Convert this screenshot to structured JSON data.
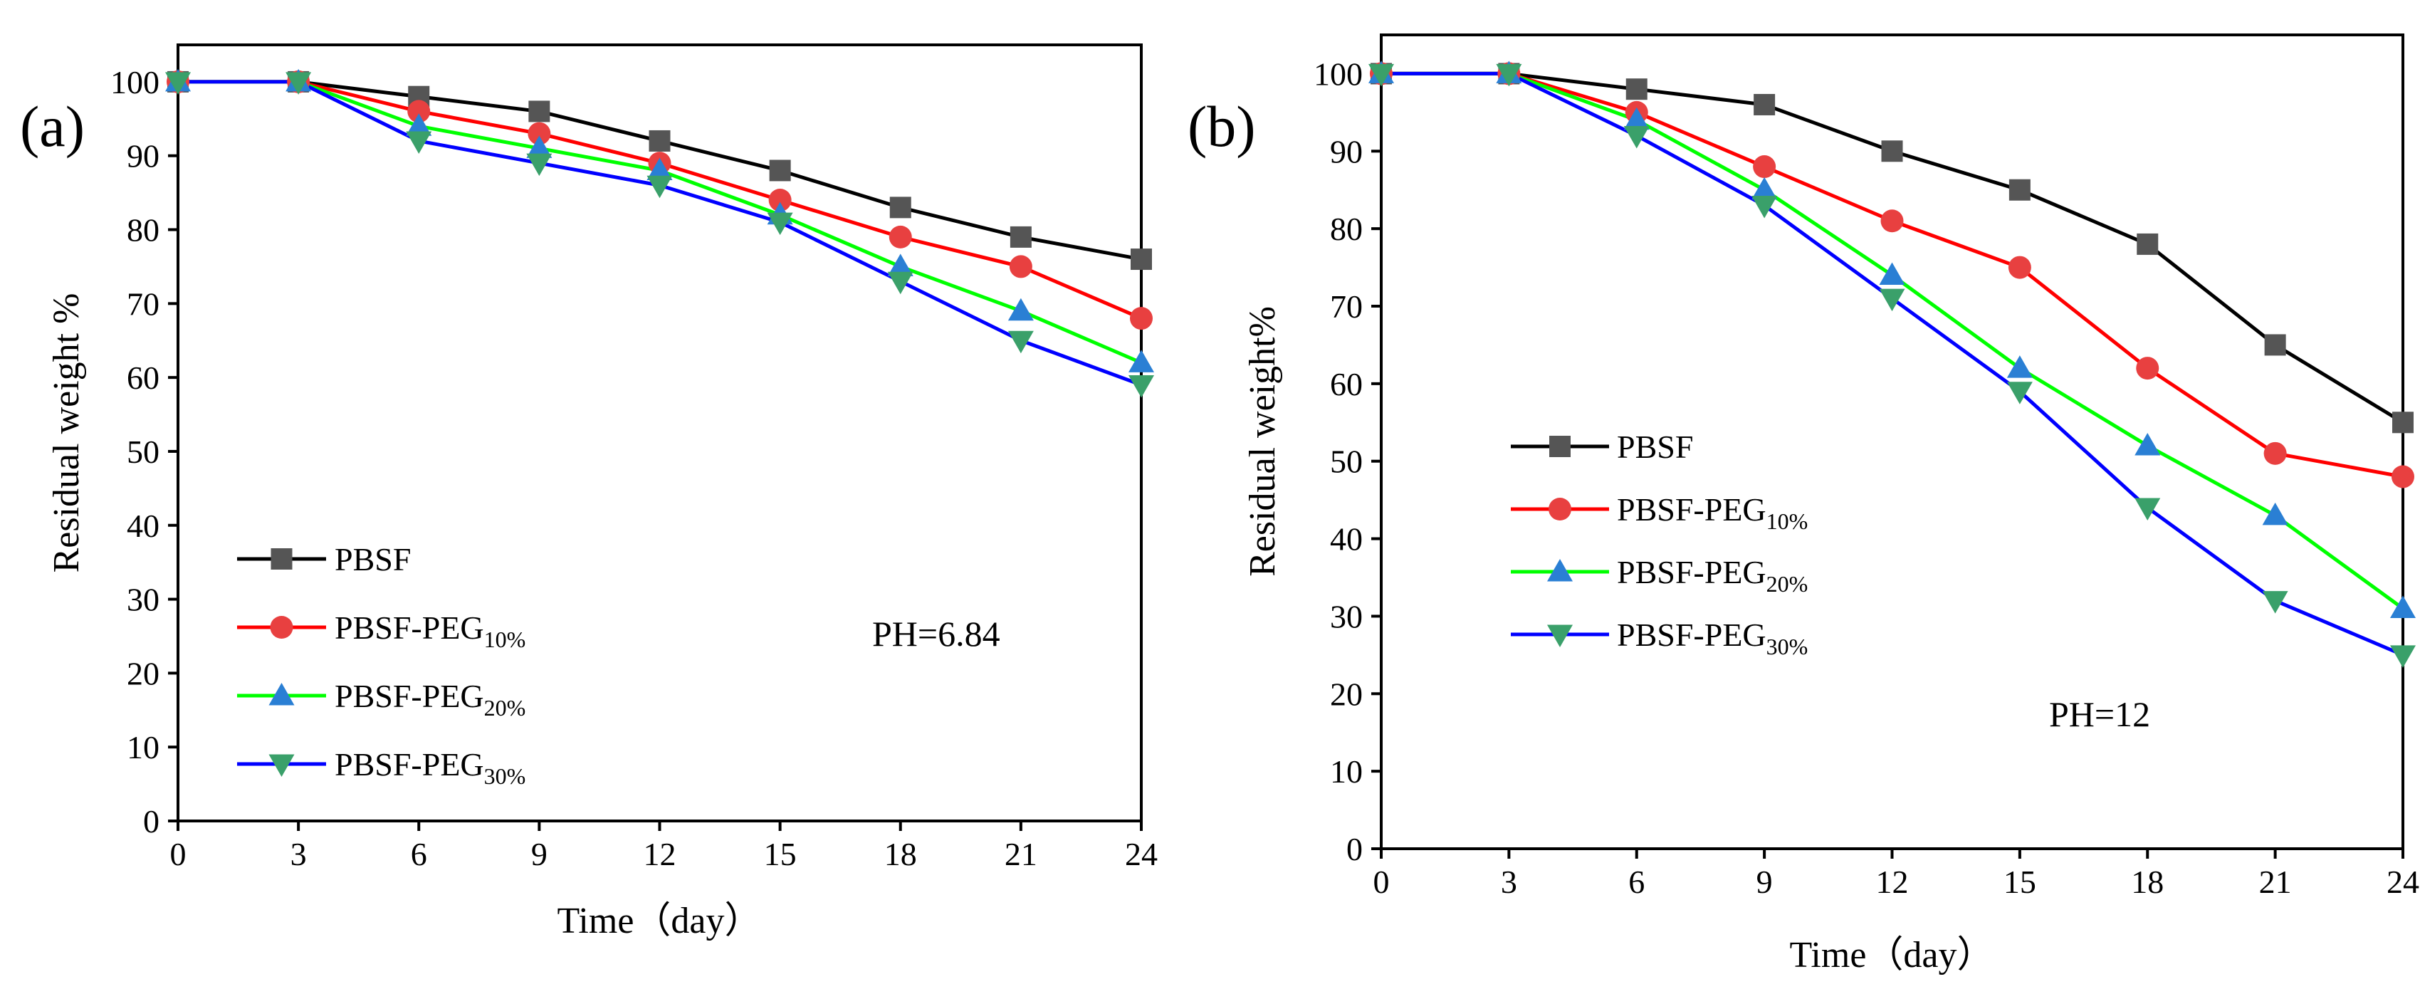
{
  "chart_data": [
    {
      "type": "line",
      "panel_label": "(a)",
      "title": "",
      "xlabel": "Time（day）",
      "ylabel": "Residual weight %",
      "annotation": "PH=6.84",
      "x": [
        0,
        3,
        6,
        9,
        12,
        15,
        18,
        21,
        24
      ],
      "xticks": [
        "0",
        "3",
        "6",
        "9",
        "12",
        "15",
        "18",
        "21",
        "24"
      ],
      "yticks": [
        "0",
        "10",
        "20",
        "30",
        "40",
        "50",
        "60",
        "70",
        "80",
        "90",
        "100"
      ],
      "xlim": [
        0,
        24
      ],
      "ylim": [
        0,
        105
      ],
      "legend_position": "lower-left",
      "series": [
        {
          "name": "PBSF",
          "subscript": "",
          "color": "#000000",
          "marker": "square",
          "marker_color": "#555555",
          "values": [
            100,
            100,
            98,
            96,
            92,
            88,
            83,
            79,
            76
          ]
        },
        {
          "name": "PBSF-PEG",
          "subscript": "10%",
          "color": "#ff0000",
          "marker": "circle",
          "marker_color": "#e84040",
          "values": [
            100,
            100,
            96,
            93,
            89,
            84,
            79,
            75,
            68
          ]
        },
        {
          "name": "PBSF-PEG",
          "subscript": "20%",
          "color": "#00ff00",
          "marker": "triangle-up",
          "marker_color": "#2a7fd4",
          "values": [
            100,
            100,
            94,
            91,
            88,
            82,
            75,
            69,
            62
          ]
        },
        {
          "name": "PBSF-PEG",
          "subscript": "30%",
          "color": "#0000ff",
          "marker": "triangle-down",
          "marker_color": "#3aa06a",
          "values": [
            100,
            100,
            92,
            89,
            86,
            81,
            73,
            65,
            59
          ]
        }
      ]
    },
    {
      "type": "line",
      "panel_label": "(b)",
      "title": "",
      "xlabel": "Time（day）",
      "ylabel": "Residual weight%",
      "annotation": "PH=12",
      "x": [
        0,
        3,
        6,
        9,
        12,
        15,
        18,
        21,
        24
      ],
      "xticks": [
        "0",
        "3",
        "6",
        "9",
        "12",
        "15",
        "18",
        "21",
        "24"
      ],
      "yticks": [
        "0",
        "10",
        "20",
        "30",
        "40",
        "50",
        "60",
        "70",
        "80",
        "90",
        "100"
      ],
      "xlim": [
        0,
        24
      ],
      "ylim": [
        0,
        105
      ],
      "legend_position": "middle-left",
      "series": [
        {
          "name": "PBSF",
          "subscript": "",
          "color": "#000000",
          "marker": "square",
          "marker_color": "#555555",
          "values": [
            100,
            100,
            98,
            96,
            90,
            85,
            78,
            65,
            55
          ]
        },
        {
          "name": "PBSF-PEG",
          "subscript": "10%",
          "color": "#ff0000",
          "marker": "circle",
          "marker_color": "#e84040",
          "values": [
            100,
            100,
            95,
            88,
            81,
            75,
            62,
            51,
            48
          ]
        },
        {
          "name": "PBSF-PEG",
          "subscript": "20%",
          "color": "#00ff00",
          "marker": "triangle-up",
          "marker_color": "#2a7fd4",
          "values": [
            100,
            100,
            94,
            85,
            74,
            62,
            52,
            43,
            31
          ]
        },
        {
          "name": "PBSF-PEG",
          "subscript": "30%",
          "color": "#0000ff",
          "marker": "triangle-down",
          "marker_color": "#3aa06a",
          "values": [
            100,
            100,
            92,
            83,
            71,
            59,
            44,
            32,
            25
          ]
        }
      ]
    }
  ]
}
